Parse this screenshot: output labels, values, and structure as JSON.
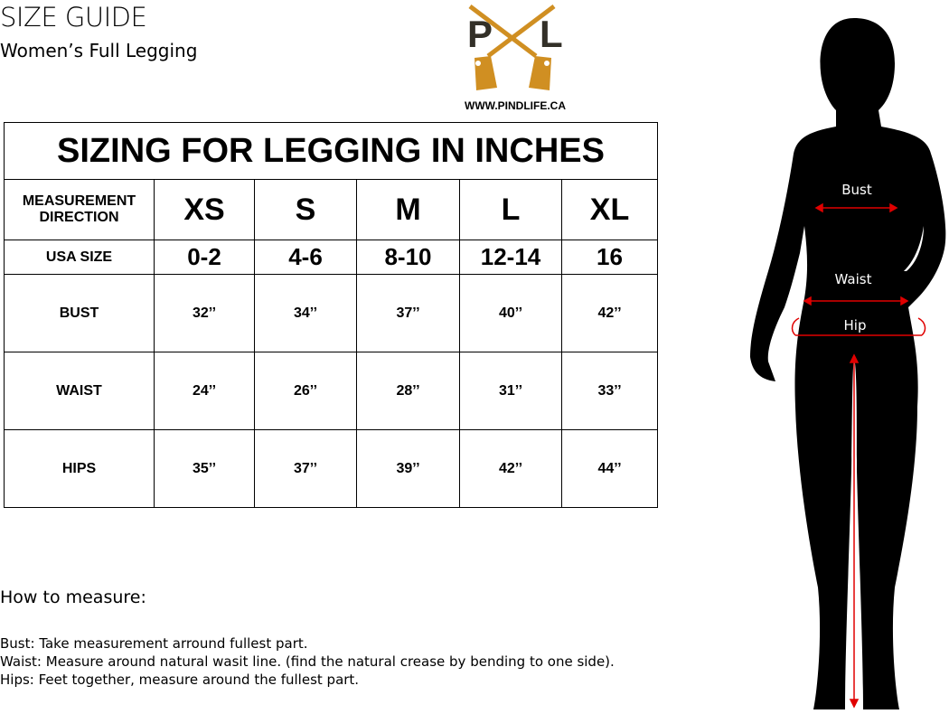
{
  "header": {
    "title": "SIZE GUIDE",
    "subtitle": "Women’s Full Legging"
  },
  "logo": {
    "letters": "PL",
    "url": "WWW.PINDLIFE.CA",
    "colors": {
      "gold": "#d08f22",
      "dark": "#333028"
    }
  },
  "table": {
    "title": "SIZING FOR LEGGING IN INCHES",
    "header_label": "MEASUREMENT DIRECTION",
    "sizes": [
      "XS",
      "S",
      "M",
      "L",
      "XL"
    ],
    "usa_label": "USA SIZE",
    "usa_sizes": [
      "0-2",
      "4-6",
      "8-10",
      "12-14",
      "16"
    ],
    "rows": [
      {
        "label": "BUST",
        "values": [
          "32’’",
          "34’’",
          "37’’",
          "40’’",
          "42’’"
        ]
      },
      {
        "label": "WAIST",
        "values": [
          "24’’",
          "26’’",
          "28’’",
          "31’’",
          "33’’"
        ]
      },
      {
        "label": "HIPS",
        "values": [
          "35’’",
          "37’’",
          "39’’",
          "42’’",
          "44’’"
        ]
      }
    ]
  },
  "howto": {
    "heading": "How to measure:",
    "notes": [
      "Bust: Take measurement arround fullest part.",
      "Waist: Measure around natural wasit line. (find the natural crease by bending to one side).",
      "Hips: Feet together, measure around the fullest part."
    ]
  },
  "figure": {
    "labels": {
      "bust": "Bust",
      "waist": "Waist",
      "hip": "Hip"
    },
    "arrow_color": "#e00000"
  }
}
